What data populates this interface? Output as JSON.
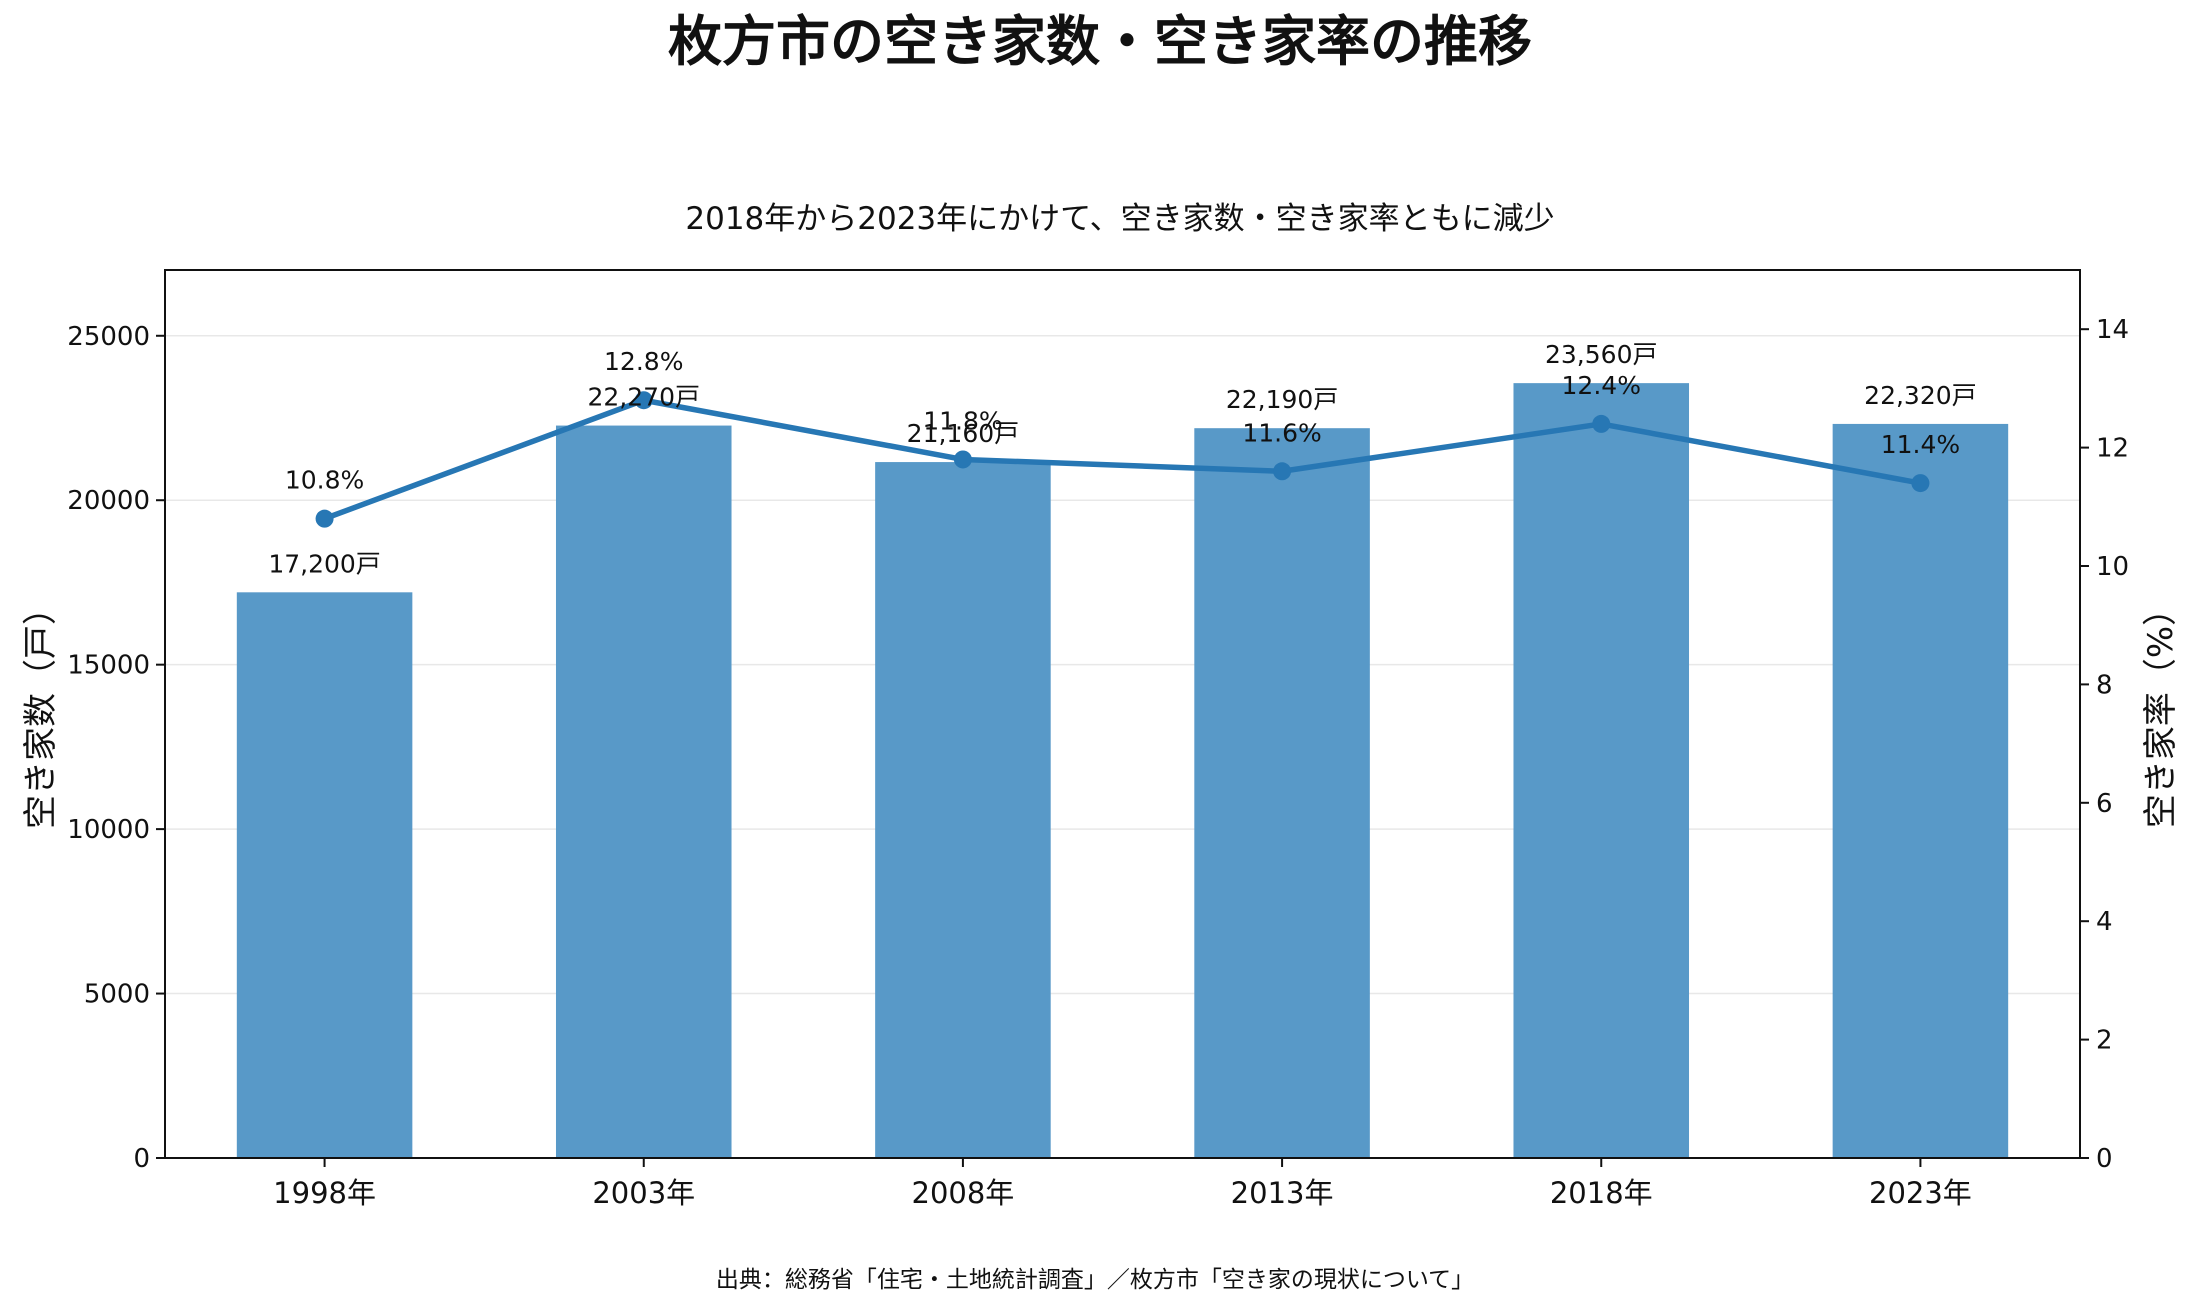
{
  "chart_data": {
    "type": "bar",
    "title": "枚方市の空き家数・空き家率の推移",
    "subtitle": "2018年から2023年にかけて、空き家数・空き家率ともに減少",
    "source": "出典：総務省「住宅・土地統計調査」／枚方市「空き家の現状について」",
    "categories": [
      "1998年",
      "2003年",
      "2008年",
      "2013年",
      "2018年",
      "2023年"
    ],
    "series": [
      {
        "type": "bar",
        "axis": "left",
        "values": [
          17200,
          22270,
          21160,
          22190,
          23560,
          22320
        ],
        "labels": [
          "17,200戸",
          "22,270戸",
          "21,160戸",
          "22,190戸",
          "23,560戸",
          "22,320戸"
        ],
        "color": "#5899c8"
      },
      {
        "type": "line",
        "axis": "right",
        "values": [
          10.8,
          12.8,
          11.8,
          11.6,
          12.4,
          11.4
        ],
        "labels": [
          "10.8%",
          "12.8%",
          "11.8%",
          "11.6%",
          "12.4%",
          "11.4%"
        ],
        "color": "#2777b4"
      }
    ],
    "y_left": {
      "label": "空き家数（戸）",
      "range": [
        0,
        27000
      ],
      "ticks": [
        0,
        5000,
        10000,
        15000,
        20000,
        25000
      ],
      "tick_labels": [
        "0",
        "5000",
        "10000",
        "15000",
        "20000",
        "25000"
      ]
    },
    "y_right": {
      "label": "空き家率（%）",
      "range": [
        0,
        15
      ],
      "ticks": [
        0,
        2,
        4,
        6,
        8,
        10,
        12,
        14
      ],
      "tick_labels": [
        "0",
        "2",
        "4",
        "6",
        "8",
        "10",
        "12",
        "14"
      ]
    },
    "grid": true
  }
}
